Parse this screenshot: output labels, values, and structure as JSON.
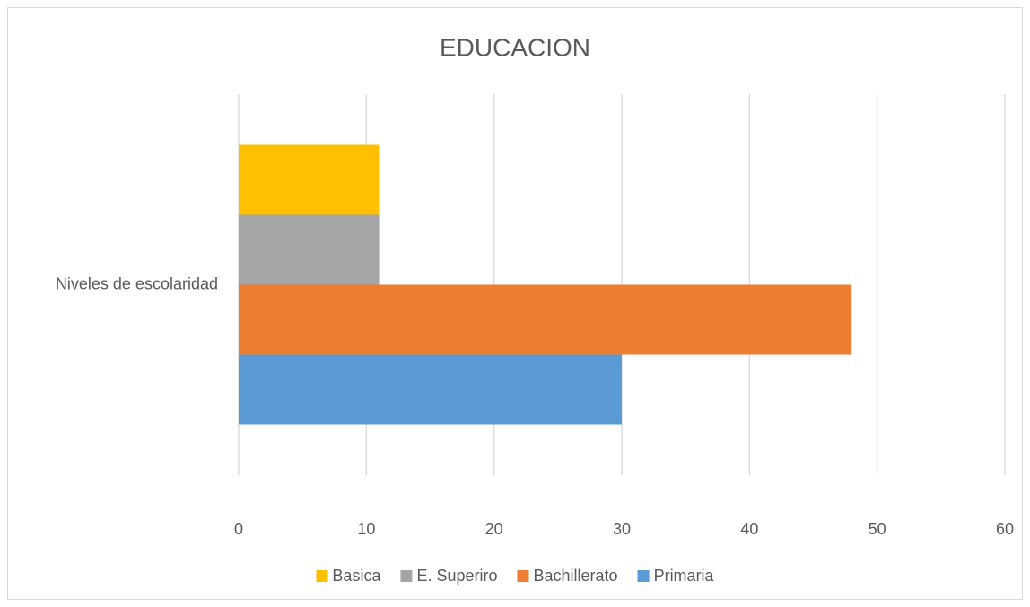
{
  "chart_data": {
    "type": "bar",
    "orientation": "horizontal",
    "title": "EDUCACION",
    "categories": [
      "Niveles de escolaridad"
    ],
    "series": [
      {
        "name": "Basica",
        "color": "#ffc000",
        "values": [
          11
        ]
      },
      {
        "name": "E. Superiro",
        "color": "#a5a5a5",
        "values": [
          11
        ]
      },
      {
        "name": "Bachillerato",
        "color": "#ed7d31",
        "values": [
          48
        ]
      },
      {
        "name": "Primaria",
        "color": "#5b9bd5",
        "values": [
          30
        ]
      }
    ],
    "xlim": [
      0,
      60
    ],
    "xticks": [
      0,
      10,
      20,
      30,
      40,
      50,
      60
    ],
    "grid": true,
    "legend": "bottom"
  }
}
